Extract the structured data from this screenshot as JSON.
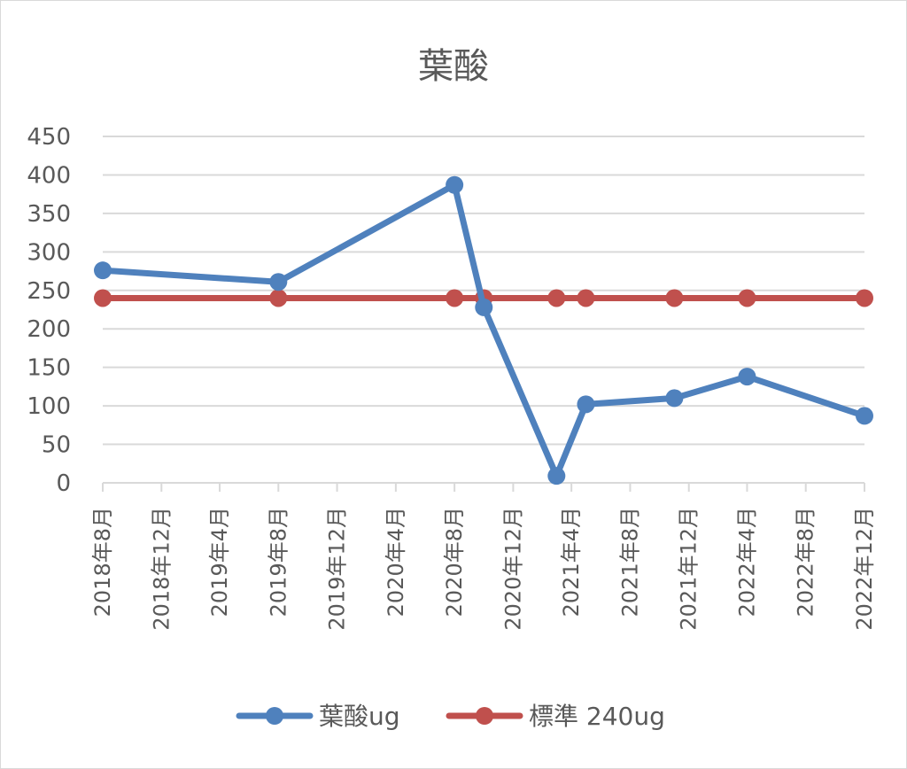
{
  "chart_data": {
    "type": "line",
    "title": "葉酸",
    "xlabel": "",
    "ylabel": "",
    "ylim": [
      0,
      450
    ],
    "yticks": [
      "0",
      "50",
      "100",
      "150",
      "200",
      "250",
      "300",
      "350",
      "400",
      "450"
    ],
    "xlim": [
      "2018-08-01",
      "2022-12-01"
    ],
    "xticks": [
      {
        "date": "2018-08-01",
        "label": "2018年8月"
      },
      {
        "date": "2018-12-01",
        "label": "2018年12月"
      },
      {
        "date": "2019-04-01",
        "label": "2019年4月"
      },
      {
        "date": "2019-08-01",
        "label": "2019年8月"
      },
      {
        "date": "2019-12-01",
        "label": "2019年12月"
      },
      {
        "date": "2020-04-01",
        "label": "2020年4月"
      },
      {
        "date": "2020-08-01",
        "label": "2020年8月"
      },
      {
        "date": "2020-12-01",
        "label": "2020年12月"
      },
      {
        "date": "2021-04-01",
        "label": "2021年4月"
      },
      {
        "date": "2021-08-01",
        "label": "2021年8月"
      },
      {
        "date": "2021-12-01",
        "label": "2021年12月"
      },
      {
        "date": "2022-04-01",
        "label": "2022年4月"
      },
      {
        "date": "2022-08-01",
        "label": "2022年8月"
      },
      {
        "date": "2022-12-01",
        "label": "2022年12月"
      }
    ],
    "grid": true,
    "legend_position": "bottom",
    "series": [
      {
        "name": "葉酸ug",
        "color": "#4f81bd",
        "points": [
          {
            "x": "2018-08-01",
            "y": 276
          },
          {
            "x": "2019-08-01",
            "y": 261
          },
          {
            "x": "2020-08-01",
            "y": 387
          },
          {
            "x": "2020-10-01",
            "y": 228
          },
          {
            "x": "2021-03-01",
            "y": 9
          },
          {
            "x": "2021-05-01",
            "y": 102
          },
          {
            "x": "2021-11-01",
            "y": 110
          },
          {
            "x": "2022-04-01",
            "y": 138
          },
          {
            "x": "2022-12-01",
            "y": 87
          }
        ]
      },
      {
        "name": "標準 240ug",
        "color": "#c0504d",
        "points": [
          {
            "x": "2018-08-01",
            "y": 240
          },
          {
            "x": "2019-08-01",
            "y": 240
          },
          {
            "x": "2020-08-01",
            "y": 240
          },
          {
            "x": "2020-10-01",
            "y": 240
          },
          {
            "x": "2021-03-01",
            "y": 240
          },
          {
            "x": "2021-05-01",
            "y": 240
          },
          {
            "x": "2021-11-01",
            "y": 240
          },
          {
            "x": "2022-04-01",
            "y": 240
          },
          {
            "x": "2022-12-01",
            "y": 240
          }
        ]
      }
    ]
  }
}
